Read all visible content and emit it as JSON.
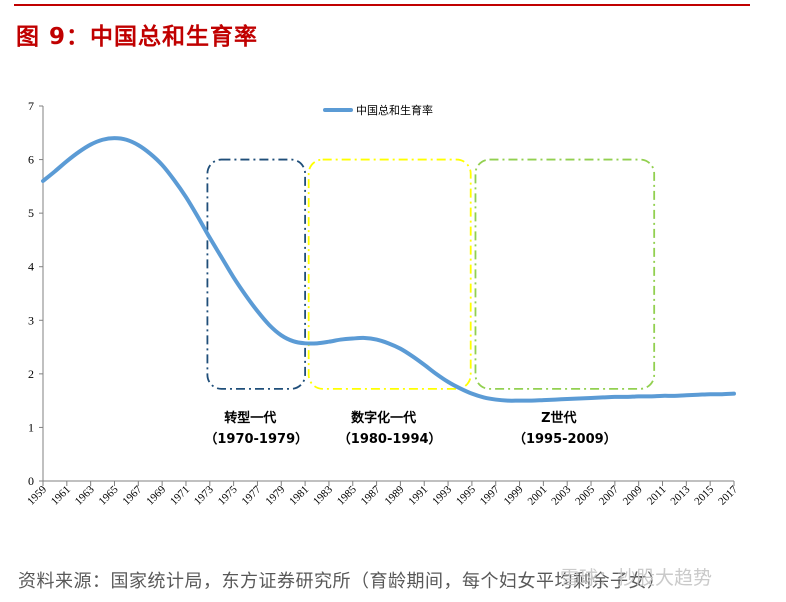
{
  "figure": {
    "title": "图  9：中国总和生育率",
    "source": "资料来源：国家统计局，东方证券研究所（育龄期间，每个妇女平均剩余子女）",
    "watermark": "雪球：抄股大趋势"
  },
  "chart_data": {
    "type": "line",
    "title": "",
    "xlabel": "",
    "ylabel": "",
    "ylim": [
      0,
      7
    ],
    "yticks": [
      0,
      1,
      2,
      3,
      4,
      5,
      6,
      7
    ],
    "xrange": [
      1959,
      2017
    ],
    "xticks": [
      1959,
      1961,
      1963,
      1965,
      1967,
      1969,
      1971,
      1973,
      1975,
      1977,
      1979,
      1981,
      1983,
      1985,
      1987,
      1989,
      1991,
      1993,
      1995,
      1997,
      1999,
      2001,
      2003,
      2005,
      2007,
      2009,
      2011,
      2013,
      2015,
      2017
    ],
    "legend": {
      "position": "top-center"
    },
    "grid": false,
    "series": [
      {
        "name": "中国总和生育率",
        "color": "#5b9bd5",
        "x": [
          1959,
          1960,
          1961,
          1962,
          1963,
          1964,
          1965,
          1966,
          1967,
          1968,
          1969,
          1970,
          1971,
          1972,
          1973,
          1974,
          1975,
          1976,
          1977,
          1978,
          1979,
          1980,
          1981,
          1982,
          1983,
          1984,
          1985,
          1986,
          1987,
          1988,
          1989,
          1990,
          1991,
          1992,
          1993,
          1994,
          1995,
          1996,
          1997,
          1998,
          1999,
          2000,
          2001,
          2002,
          2003,
          2004,
          2005,
          2006,
          2007,
          2008,
          2009,
          2010,
          2011,
          2012,
          2013,
          2014,
          2015,
          2016,
          2017
        ],
        "values": [
          5.6,
          5.78,
          5.97,
          6.14,
          6.28,
          6.37,
          6.4,
          6.37,
          6.27,
          6.11,
          5.9,
          5.62,
          5.3,
          4.93,
          4.54,
          4.17,
          3.8,
          3.47,
          3.17,
          2.91,
          2.72,
          2.61,
          2.57,
          2.57,
          2.6,
          2.64,
          2.66,
          2.67,
          2.64,
          2.57,
          2.47,
          2.33,
          2.17,
          2.0,
          1.85,
          1.73,
          1.63,
          1.56,
          1.52,
          1.5,
          1.5,
          1.5,
          1.51,
          1.52,
          1.53,
          1.54,
          1.55,
          1.56,
          1.57,
          1.57,
          1.58,
          1.58,
          1.59,
          1.59,
          1.6,
          1.61,
          1.62,
          1.62,
          1.63
        ]
      }
    ],
    "annotations": [
      {
        "label": "转型一代",
        "range_label": "（1970-1979）",
        "x_range": [
          1972.8,
          1981
        ],
        "y_range": [
          1.72,
          6.0
        ],
        "color": "#1f4e79"
      },
      {
        "label": "数字化一代",
        "range_label": "（1980-1994）",
        "x_range": [
          1981.3,
          1994.9
        ],
        "y_range": [
          1.72,
          6.0
        ],
        "color": "#ffff00"
      },
      {
        "label": "Z世代",
        "range_label": "（1995-2009）",
        "x_range": [
          1995.3,
          2010.3
        ],
        "y_range": [
          1.72,
          6.0
        ],
        "color": "#92d050"
      }
    ]
  }
}
